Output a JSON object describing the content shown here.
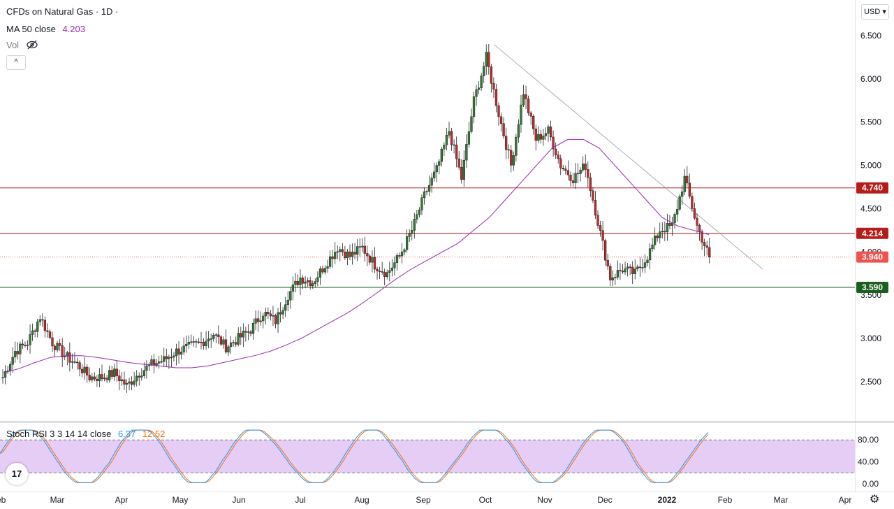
{
  "header": {
    "symbol_title": "CFDs on Natural Gas · 1D ·",
    "ma_label": "MA 50 close",
    "ma_value": "4.203",
    "vol_label": "Vol",
    "vol_icon": "eye-crossed-icon",
    "collapse_glyph": "^"
  },
  "currency_button": "USD",
  "stoch_legend": {
    "label": "Stoch RSI 3 3 14 14 close",
    "k_value": "6.37",
    "d_value": "12.52"
  },
  "colors": {
    "up": "#26a69a",
    "down": "#ef5350",
    "candle_up_body": "#2e7d32",
    "candle_down_body": "#c62828",
    "ma_line": "#9c27b0",
    "resistance_line": "#b71c1c",
    "support_line": "#1b5e20",
    "stoch_k": "#2196f3",
    "stoch_d": "#ff6d00",
    "stoch_band": "#e1c4f5"
  },
  "logo_text": "17",
  "settings_icon": "gear-icon",
  "chart_data": {
    "type": "candlestick",
    "price_axis": {
      "ticks": [
        "6.500",
        "6.000",
        "5.500",
        "5.000",
        "4.500",
        "4.000",
        "3.500",
        "3.000",
        "2.500"
      ],
      "range": [
        2.2,
        6.7
      ]
    },
    "time_axis": [
      "Feb",
      "Mar",
      "Apr",
      "May",
      "Jun",
      "Jul",
      "Aug",
      "Sep",
      "Oct",
      "Nov",
      "Dec",
      "2022",
      "Feb",
      "Mar",
      "Apr"
    ],
    "price_labels": [
      {
        "value": 4.74,
        "text": "4.740",
        "kind": "resistance"
      },
      {
        "value": 4.214,
        "text": "4.214",
        "kind": "resistance"
      },
      {
        "value": 3.94,
        "text": "3.940",
        "kind": "last"
      },
      {
        "value": 3.59,
        "text": "3.590",
        "kind": "support"
      }
    ],
    "trendline": {
      "from_date": "2021-10-05",
      "from_value": 6.4,
      "to_date": "2022-01-28",
      "to_value": 3.8
    },
    "closes_weekly": [
      2.55,
      2.85,
      2.95,
      3.25,
      2.95,
      2.8,
      2.7,
      2.55,
      2.55,
      2.6,
      2.45,
      2.6,
      2.7,
      2.75,
      2.85,
      2.9,
      2.95,
      3.05,
      2.9,
      3.0,
      3.1,
      3.3,
      3.2,
      3.5,
      3.7,
      3.65,
      3.85,
      4.05,
      3.95,
      4.05,
      3.85,
      3.75,
      3.95,
      4.25,
      4.65,
      4.95,
      5.4,
      4.85,
      5.75,
      6.25,
      5.6,
      5.0,
      5.85,
      5.3,
      5.4,
      5.0,
      4.85,
      5.0,
      4.35,
      3.7,
      3.8,
      3.75,
      3.95,
      4.25,
      4.3,
      4.85,
      4.3,
      3.94
    ],
    "ma50": [
      2.6,
      2.65,
      2.72,
      2.78,
      2.8,
      2.8,
      2.78,
      2.75,
      2.72,
      2.7,
      2.68,
      2.66,
      2.66,
      2.68,
      2.72,
      2.76,
      2.8,
      2.85,
      2.92,
      3.0,
      3.1,
      3.2,
      3.3,
      3.42,
      3.55,
      3.68,
      3.8,
      3.9,
      4.0,
      4.1,
      4.25,
      4.4,
      4.6,
      4.8,
      5.0,
      5.2,
      5.3,
      5.3,
      5.2,
      5.0,
      4.8,
      4.6,
      4.4,
      4.3,
      4.25,
      4.2
    ],
    "stoch_rsi": {
      "levels": [
        "80.00",
        "40.00",
        "0.00"
      ],
      "band": [
        20,
        80
      ],
      "k_last": 6.37,
      "d_last": 12.52
    }
  }
}
